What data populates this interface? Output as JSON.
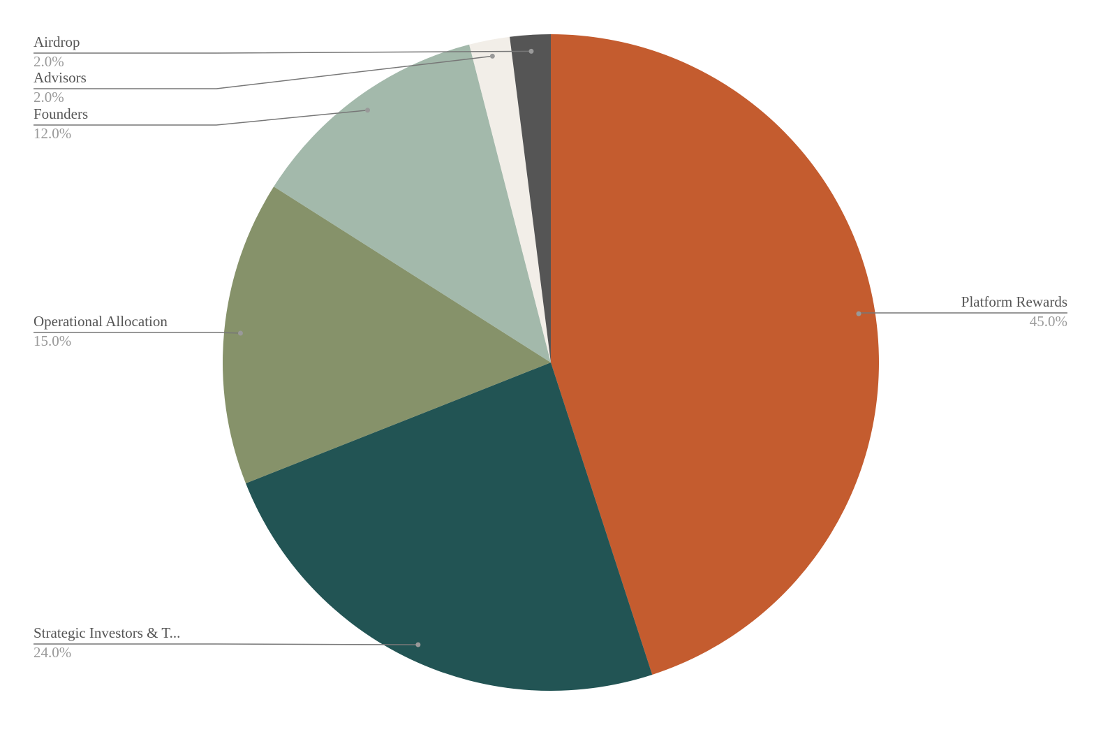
{
  "chart_data": {
    "type": "pie",
    "categories": [
      "Platform Rewards",
      "Strategic Investors & T...",
      "Operational Allocation",
      "Founders",
      "Advisors",
      "Airdrop"
    ],
    "values": [
      45,
      24,
      15,
      12,
      2,
      2
    ],
    "value_labels": [
      "45.0%",
      "24.0%",
      "15.0%",
      "12.0%",
      "2.0%",
      "2.0%"
    ],
    "colors": [
      "#c45c2f",
      "#225454",
      "#86926a",
      "#a3b9ab",
      "#f2eee8",
      "#555555"
    ]
  }
}
